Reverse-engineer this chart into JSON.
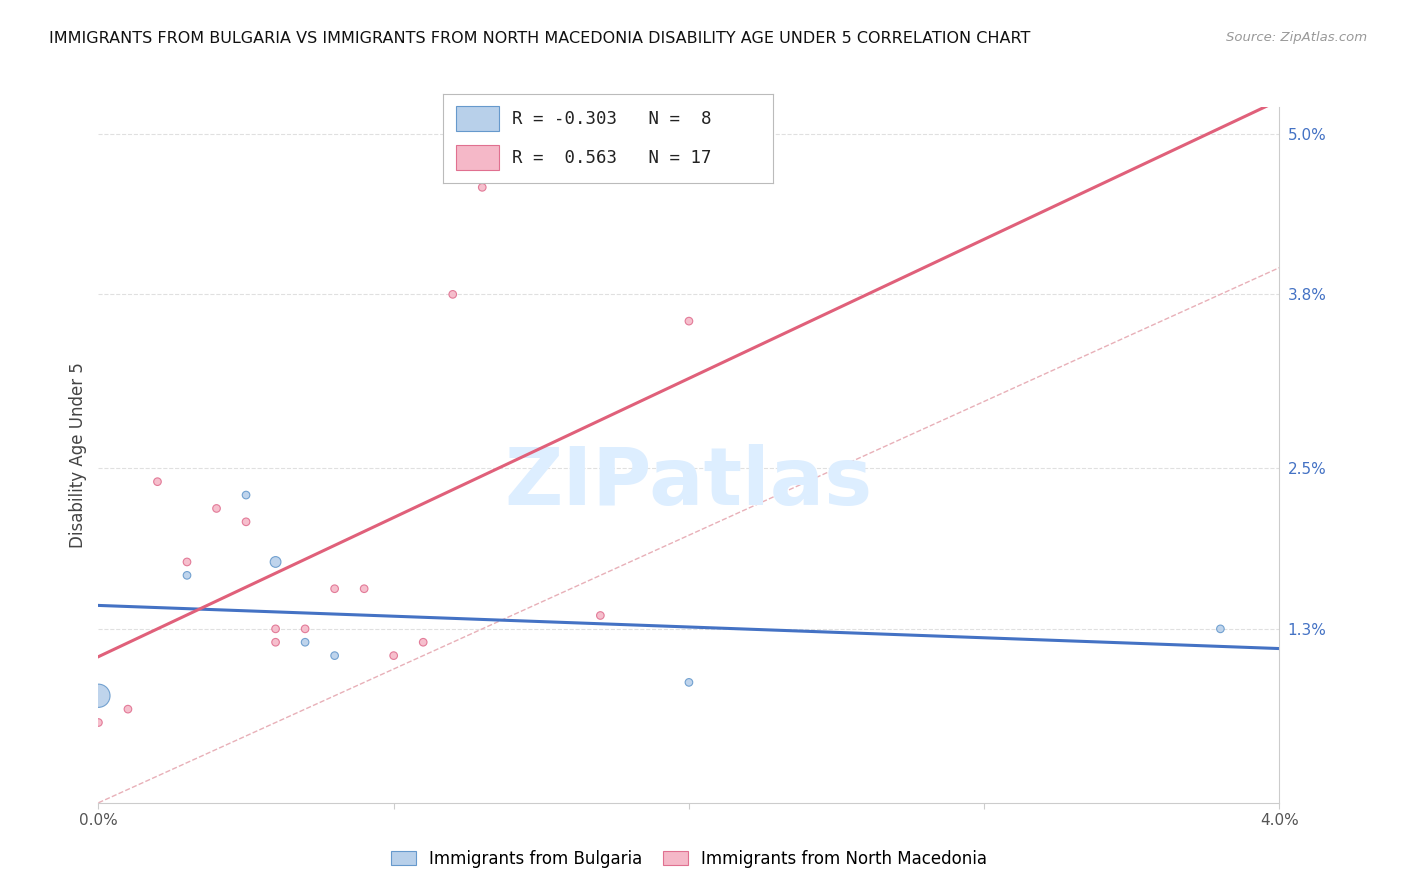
{
  "title": "IMMIGRANTS FROM BULGARIA VS IMMIGRANTS FROM NORTH MACEDONIA DISABILITY AGE UNDER 5 CORRELATION CHART",
  "source": "Source: ZipAtlas.com",
  "ylabel": "Disability Age Under 5",
  "bg_color": "#ffffff",
  "grid_color": "#e0e0e0",
  "bulgaria_x": [
    0.0,
    0.003,
    0.005,
    0.006,
    0.007,
    0.008,
    0.02,
    0.038
  ],
  "bulgaria_y": [
    0.008,
    0.017,
    0.023,
    0.018,
    0.012,
    0.011,
    0.009,
    0.013
  ],
  "bulgaria_size": [
    280,
    30,
    30,
    60,
    30,
    30,
    30,
    30
  ],
  "macedonia_x": [
    0.0,
    0.001,
    0.002,
    0.003,
    0.004,
    0.005,
    0.006,
    0.006,
    0.007,
    0.008,
    0.009,
    0.01,
    0.011,
    0.012,
    0.013,
    0.017,
    0.02
  ],
  "macedonia_y": [
    0.006,
    0.007,
    0.024,
    0.018,
    0.022,
    0.021,
    0.012,
    0.013,
    0.013,
    0.016,
    0.016,
    0.011,
    0.012,
    0.038,
    0.046,
    0.014,
    0.036
  ],
  "macedonia_size": [
    30,
    30,
    30,
    30,
    30,
    30,
    30,
    30,
    30,
    30,
    30,
    30,
    30,
    30,
    30,
    30,
    30
  ],
  "bulgaria_R": -0.303,
  "bulgaria_N": 8,
  "macedonia_R": 0.563,
  "macedonia_N": 17,
  "bulgaria_dot_color": "#b8d0ea",
  "bulgaria_edge_color": "#6699cc",
  "macedonia_dot_color": "#f5b8c8",
  "macedonia_edge_color": "#e07090",
  "line_color_bulgaria": "#4472c4",
  "line_color_macedonia": "#e0607a",
  "diagonal_color": "#cccccc",
  "xlim": [
    0.0,
    0.04
  ],
  "ylim": [
    0.0,
    0.052
  ],
  "yticks": [
    0.013,
    0.025,
    0.038,
    0.05
  ],
  "ytick_labels": [
    "1.3%",
    "2.5%",
    "3.8%",
    "5.0%"
  ],
  "xticks": [
    0.0,
    0.01,
    0.02,
    0.03,
    0.04
  ],
  "xtick_labels": [
    "0.0%",
    "",
    "",
    "",
    "4.0%"
  ],
  "legend_bulgaria_label": "Immigrants from Bulgaria",
  "legend_macedonia_label": "Immigrants from North Macedonia",
  "watermark_text": "ZIPatlas",
  "watermark_color": "#ddeeff"
}
